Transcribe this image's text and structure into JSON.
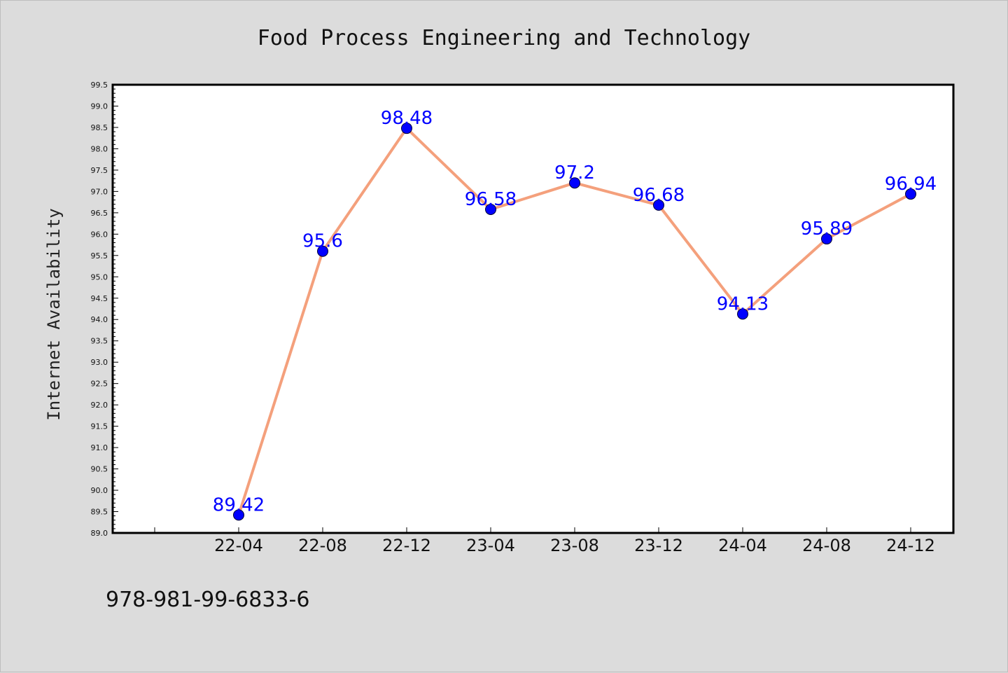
{
  "chart_data": {
    "type": "line",
    "title": "Food Process Engineering and Technology",
    "ylabel": "Internet Availability",
    "xlabel": "",
    "categories": [
      "22-04",
      "22-08",
      "22-12",
      "23-04",
      "23-08",
      "23-12",
      "24-04",
      "24-08",
      "24-12"
    ],
    "values": [
      89.42,
      95.6,
      98.48,
      96.58,
      97.2,
      96.68,
      94.13,
      95.89,
      96.94
    ],
    "data_labels": [
      "89.42",
      "95.6",
      "98.48",
      "96.58",
      "97.2",
      "96.68",
      "94.13",
      "95.89",
      "96.94"
    ],
    "ylim": [
      89.0,
      99.5
    ],
    "y_tick_labels": [
      "89.0",
      "89.5",
      "90.0",
      "90.5",
      "91.0",
      "91.5",
      "92.0",
      "92.5",
      "93.0",
      "93.5",
      "94.0",
      "94.5",
      "95.0",
      "95.5",
      "96.0",
      "96.5",
      "97.0",
      "97.5",
      "98.0",
      "98.5",
      "99.0",
      "99.5"
    ],
    "grid": false,
    "legend": "none",
    "line_color": "#f4a07c",
    "marker_color": "#0000ff",
    "label_color": "#0000ff",
    "plot_background": "#ffffff",
    "page_background": "#dcdcdc"
  },
  "footer": {
    "isbn": "978-981-99-6833-6"
  }
}
